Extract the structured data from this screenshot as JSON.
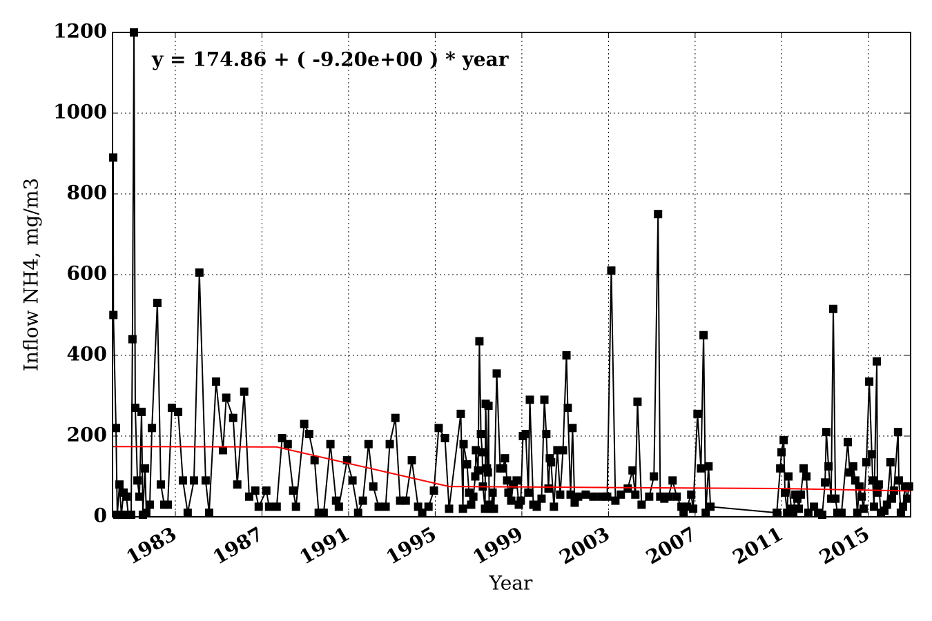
{
  "chart_data": {
    "type": "line",
    "xlabel": "Year",
    "ylabel": "Inflow NH4, mg/m3",
    "annotation": {
      "text": "y = 174.86 + ( -9.20e+00 ) * year",
      "color": "#ff0000"
    },
    "color": "#000000",
    "marker": "square",
    "grid": true,
    "xlim": [
      1980.1,
      2016.95
    ],
    "ylim": [
      0,
      1200
    ],
    "xticks": [
      1983,
      1987,
      1991,
      1995,
      1999,
      2003,
      2007,
      2011,
      2015
    ],
    "yticks": [
      0,
      200,
      400,
      600,
      800,
      1000,
      1200
    ],
    "x": [
      1980.13,
      1980.14,
      1980.26,
      1980.32,
      1980.42,
      1980.51,
      1980.61,
      1980.74,
      1980.83,
      1980.96,
      1981.02,
      1981.09,
      1981.15,
      1981.25,
      1981.34,
      1981.44,
      1981.5,
      1981.6,
      1981.66,
      1981.82,
      1981.92,
      1982.17,
      1982.33,
      1982.49,
      1982.65,
      1982.84,
      1983.13,
      1983.35,
      1983.57,
      1983.86,
      1984.11,
      1984.4,
      1984.56,
      1984.88,
      1985.2,
      1985.35,
      1985.67,
      1985.86,
      1986.18,
      1986.41,
      1986.69,
      1986.85,
      1987.2,
      1987.33,
      1987.68,
      1987.93,
      1988.19,
      1988.44,
      1988.57,
      1988.95,
      1989.18,
      1989.43,
      1989.62,
      1989.85,
      1990.16,
      1990.42,
      1990.55,
      1990.93,
      1991.18,
      1991.44,
      1991.66,
      1991.92,
      1992.14,
      1992.39,
      1992.71,
      1992.9,
      1993.16,
      1993.38,
      1993.64,
      1993.92,
      1994.21,
      1994.4,
      1994.69,
      1994.94,
      1995.16,
      1995.45,
      1995.64,
      1996.18,
      1996.28,
      1996.31,
      1996.47,
      1996.56,
      1996.66,
      1996.76,
      1996.85,
      1996.88,
      1996.98,
      1997.04,
      1997.11,
      1997.17,
      1997.2,
      1997.3,
      1997.33,
      1997.39,
      1997.43,
      1997.46,
      1997.49,
      1997.58,
      1997.65,
      1997.71,
      1997.84,
      1998.0,
      1998.13,
      1998.22,
      1998.32,
      1998.38,
      1998.51,
      1998.6,
      1998.76,
      1998.86,
      1998.95,
      1999.05,
      1999.18,
      1999.3,
      1999.37,
      1999.53,
      1999.69,
      1999.91,
      2000.04,
      2000.13,
      2000.23,
      2000.29,
      2000.35,
      2000.48,
      2000.64,
      2000.77,
      2000.9,
      2001.06,
      2001.12,
      2001.25,
      2001.34,
      2001.44,
      2001.6,
      2001.95,
      2002.3,
      2002.68,
      2002.94,
      2003.13,
      2003.32,
      2003.57,
      2003.89,
      2004.11,
      2004.24,
      2004.34,
      2004.53,
      2004.88,
      2005.1,
      2005.29,
      2005.39,
      2005.58,
      2005.77,
      2005.96,
      2006.15,
      2006.37,
      2006.47,
      2006.63,
      2006.82,
      2006.91,
      2007.11,
      2007.27,
      2007.39,
      2007.49,
      2007.62,
      2007.71,
      2010.77,
      2010.93,
      2010.99,
      2011.09,
      2011.15,
      2011.25,
      2011.31,
      2011.44,
      2011.53,
      2011.63,
      2011.72,
      2011.79,
      2011.88,
      2012.01,
      2012.14,
      2012.23,
      2012.49,
      2012.68,
      2012.87,
      2013.0,
      2013.06,
      2013.16,
      2013.28,
      2013.38,
      2013.48,
      2013.57,
      2013.76,
      2014.05,
      2014.14,
      2014.3,
      2014.4,
      2014.49,
      2014.59,
      2014.69,
      2014.78,
      2014.91,
      2015.04,
      2015.16,
      2015.2,
      2015.26,
      2015.39,
      2015.42,
      2015.48,
      2015.58,
      2015.74,
      2015.86,
      2016.02,
      2016.09,
      2016.18,
      2016.37,
      2016.41,
      2016.5,
      2016.6,
      2016.69,
      2016.79,
      2016.88
    ],
    "values": [
      890,
      500,
      220,
      5,
      80,
      5,
      60,
      50,
      5,
      5,
      440,
      1200,
      270,
      90,
      50,
      260,
      5,
      120,
      10,
      30,
      220,
      530,
      80,
      30,
      30,
      270,
      260,
      90,
      10,
      90,
      605,
      90,
      10,
      335,
      165,
      295,
      245,
      80,
      310,
      50,
      65,
      25,
      65,
      25,
      25,
      195,
      180,
      65,
      25,
      230,
      205,
      140,
      10,
      10,
      180,
      40,
      25,
      140,
      90,
      10,
      40,
      180,
      75,
      25,
      25,
      180,
      245,
      40,
      40,
      140,
      25,
      10,
      25,
      65,
      220,
      195,
      20,
      255,
      20,
      180,
      130,
      60,
      30,
      50,
      100,
      165,
      115,
      435,
      205,
      160,
      75,
      20,
      280,
      120,
      110,
      275,
      30,
      20,
      60,
      20,
      355,
      120,
      120,
      145,
      90,
      60,
      40,
      80,
      90,
      30,
      40,
      200,
      205,
      60,
      290,
      30,
      25,
      45,
      290,
      205,
      70,
      145,
      135,
      25,
      165,
      55,
      165,
      400,
      270,
      55,
      220,
      35,
      50,
      55,
      50,
      50,
      50,
      610,
      40,
      55,
      70,
      115,
      55,
      285,
      30,
      50,
      100,
      750,
      50,
      45,
      50,
      90,
      50,
      25,
      10,
      25,
      55,
      20,
      255,
      120,
      450,
      10,
      125,
      25,
      10,
      120,
      160,
      190,
      60,
      10,
      100,
      20,
      10,
      55,
      45,
      20,
      55,
      120,
      100,
      10,
      25,
      10,
      5,
      85,
      210,
      125,
      45,
      515,
      45,
      10,
      10,
      185,
      110,
      125,
      90,
      10,
      75,
      50,
      20,
      135,
      335,
      155,
      90,
      25,
      385,
      60,
      80,
      10,
      15,
      30,
      135,
      45,
      65,
      210,
      90,
      10,
      25,
      75,
      45,
      75
    ],
    "trend": {
      "color": "#ff0000",
      "x": [
        1980.1,
        1987.68,
        1995.64,
        2011,
        2016.95
      ],
      "values": [
        174,
        173,
        75,
        70,
        64
      ]
    }
  }
}
